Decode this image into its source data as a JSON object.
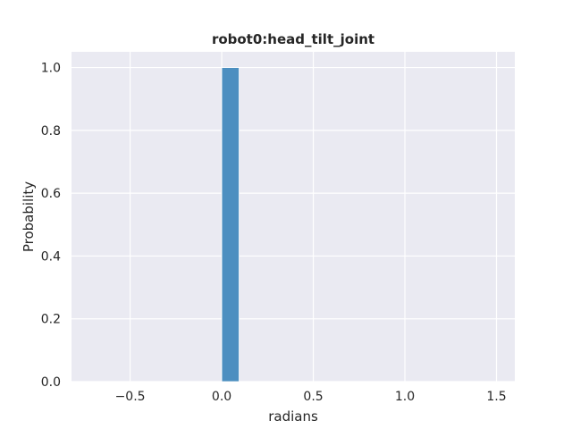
{
  "chart_data": {
    "type": "bar",
    "title": "robot0:head_tilt_joint",
    "xlabel": "radians",
    "ylabel": "Probability",
    "xlim": [
      -0.82,
      1.6
    ],
    "ylim": [
      0,
      1.05
    ],
    "xticks": [
      -0.5,
      0.0,
      0.5,
      1.0,
      1.5
    ],
    "xtick_labels": [
      "−0.5",
      "0.0",
      "0.5",
      "1.0",
      "1.5"
    ],
    "yticks": [
      0.0,
      0.2,
      0.4,
      0.6,
      0.8,
      1.0
    ],
    "ytick_labels": [
      "0.0",
      "0.2",
      "0.4",
      "0.6",
      "0.8",
      "1.0"
    ],
    "bins": [
      {
        "x0": 0.0,
        "x1": 0.095,
        "value": 1.0
      }
    ],
    "grid": true,
    "colors": {
      "background": "#eaeaf2",
      "grid": "#ffffff",
      "bar": "#4c8fc0",
      "bar_edge": "#ffffff",
      "text": "#262626"
    }
  }
}
